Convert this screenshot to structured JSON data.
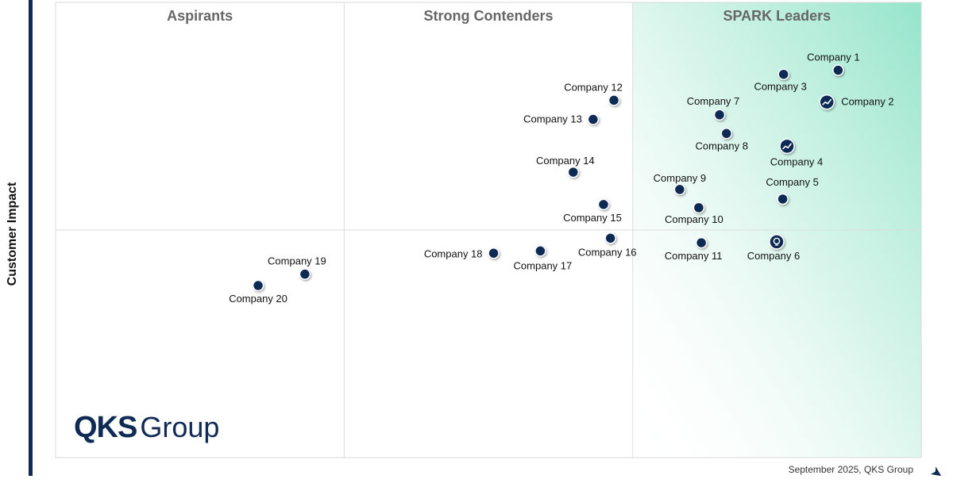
{
  "chart_data": {
    "type": "scatter",
    "title": "",
    "ylabel": "Customer Impact",
    "xlabel": "",
    "xlim": [
      0,
      100
    ],
    "ylim": [
      0,
      100
    ],
    "quadrants": [
      "Aspirants",
      "Strong Contenders",
      "SPARK Leaders"
    ],
    "footer": "September 2025, QKS Group",
    "logo": {
      "primary": "QKS",
      "secondary": "Group"
    },
    "points": [
      {
        "name": "Company 1",
        "x": 90.4,
        "y": 85.1,
        "icon": "dot"
      },
      {
        "name": "Company 2",
        "x": 89.1,
        "y": 78.1,
        "icon": "trend-up"
      },
      {
        "name": "Company 3",
        "x": 84.1,
        "y": 84.2,
        "icon": "dot"
      },
      {
        "name": "Company 4",
        "x": 84.5,
        "y": 68.4,
        "icon": "trend-up"
      },
      {
        "name": "Company 5",
        "x": 84.0,
        "y": 56.8,
        "icon": "dot"
      },
      {
        "name": "Company 6",
        "x": 83.3,
        "y": 47.4,
        "icon": "lightbulb"
      },
      {
        "name": "Company 7",
        "x": 76.7,
        "y": 75.3,
        "icon": "dot"
      },
      {
        "name": "Company 8",
        "x": 77.5,
        "y": 71.2,
        "icon": "dot"
      },
      {
        "name": "Company 9",
        "x": 72.1,
        "y": 58.9,
        "icon": "dot"
      },
      {
        "name": "Company 10",
        "x": 74.3,
        "y": 54.9,
        "icon": "dot"
      },
      {
        "name": "Company 11",
        "x": 74.6,
        "y": 47.2,
        "icon": "dot"
      },
      {
        "name": "Company 12",
        "x": 64.5,
        "y": 78.5,
        "icon": "dot"
      },
      {
        "name": "Company 13",
        "x": 62.1,
        "y": 74.3,
        "icon": "dot"
      },
      {
        "name": "Company 14",
        "x": 59.8,
        "y": 62.7,
        "icon": "dot"
      },
      {
        "name": "Company 15",
        "x": 63.3,
        "y": 55.6,
        "icon": "dot"
      },
      {
        "name": "Company 16",
        "x": 64.1,
        "y": 48.2,
        "icon": "dot"
      },
      {
        "name": "Company 17",
        "x": 56.0,
        "y": 45.4,
        "icon": "dot"
      },
      {
        "name": "Company 18",
        "x": 50.6,
        "y": 44.9,
        "icon": "dot"
      },
      {
        "name": "Company 19",
        "x": 28.8,
        "y": 40.3,
        "icon": "dot"
      },
      {
        "name": "Company 20",
        "x": 23.4,
        "y": 37.8,
        "icon": "dot"
      }
    ]
  }
}
